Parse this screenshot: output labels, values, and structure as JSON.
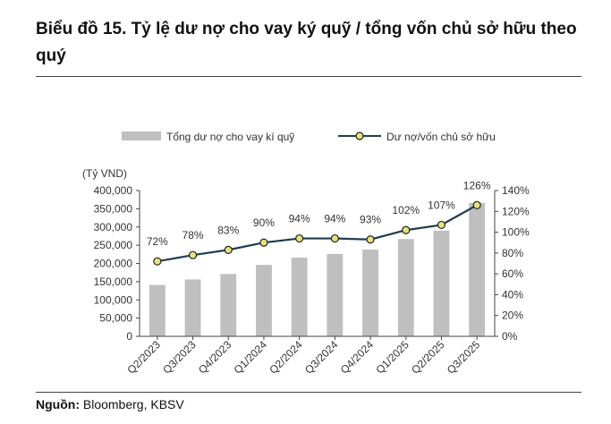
{
  "title": "Biểu đồ 15. Tỷ lệ dư nợ cho vay ký quỹ / tổng vốn chủ sở hữu theo quý",
  "source": {
    "label": "Nguồn:",
    "text": "Bloomberg, KBSV"
  },
  "chart_data": {
    "type": "bar+line",
    "categories": [
      "Q2/2023",
      "Q3/2023",
      "Q4/2023",
      "Q1/2024",
      "Q2/2024",
      "Q3/2024",
      "Q4/2024",
      "Q1/2025",
      "Q2/2025",
      "Q3/2025"
    ],
    "series": [
      {
        "name": "Tổng dư nợ cho vay kí quỹ",
        "type": "bar",
        "axis": "left",
        "color": "#bfbfbf",
        "values": [
          141000,
          156000,
          171000,
          196000,
          216000,
          226000,
          238000,
          267000,
          290000,
          366000
        ]
      },
      {
        "name": "Dư nợ/vốn chủ sở hữu",
        "type": "line",
        "axis": "right",
        "color": "#1f3b57",
        "marker_color": "#e8e37a",
        "values": [
          72,
          78,
          83,
          90,
          94,
          94,
          93,
          102,
          107,
          126
        ],
        "labels": [
          "72%",
          "78%",
          "83%",
          "90%",
          "94%",
          "94%",
          "93%",
          "102%",
          "107%",
          "126%"
        ]
      }
    ],
    "ylabel": "(Tỷ VND)",
    "ylim": [
      0,
      400000
    ],
    "yticks": [
      "0",
      "50,000",
      "100,000",
      "150,000",
      "200,000",
      "250,000",
      "300,000",
      "350,000",
      "400,000"
    ],
    "y2lim": [
      0,
      140
    ],
    "y2ticks": [
      "0%",
      "20%",
      "40%",
      "60%",
      "80%",
      "100%",
      "120%",
      "140%"
    ],
    "grid": false,
    "legend": "top"
  }
}
